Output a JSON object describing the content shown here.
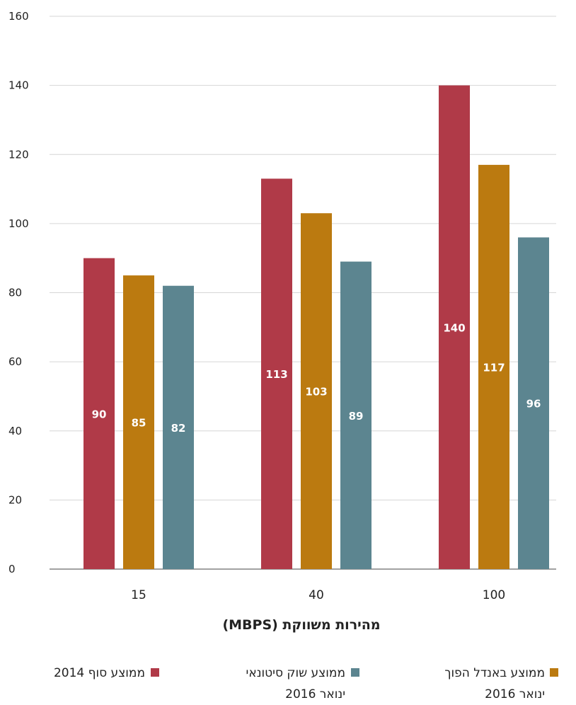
{
  "chart_data": {
    "type": "bar",
    "categories": [
      "15",
      "40",
      "100"
    ],
    "series": [
      {
        "name": "ממוצע סוף 2014",
        "values": [
          90,
          113,
          140
        ],
        "color": "#b03a48"
      },
      {
        "name": "ממוצע באנדל הפוך ינואר 2016",
        "values": [
          85,
          103,
          117
        ],
        "color": "#bb7a10"
      },
      {
        "name": "ממוצע שוק סיטונאי ינואר 2016",
        "values": [
          82,
          89,
          96
        ],
        "color": "#5c8590"
      }
    ],
    "xlabel": "מהירות משווקת (MBPS)",
    "ylabel": "",
    "ylim": [
      0,
      160
    ],
    "yticks": [
      0,
      20,
      40,
      60,
      80,
      100,
      120,
      140,
      160
    ],
    "grid": true,
    "legend_position": "bottom"
  },
  "legend": {
    "series0": {
      "line1": "ממוצע סוף 2014",
      "line2": ""
    },
    "series1": {
      "line1": "ממוצע באנדל הפוך",
      "line2": "ינואר 2016"
    },
    "series2": {
      "line1": "ממוצע שוק סיטונאי",
      "line2": "ינואר 2016"
    }
  }
}
